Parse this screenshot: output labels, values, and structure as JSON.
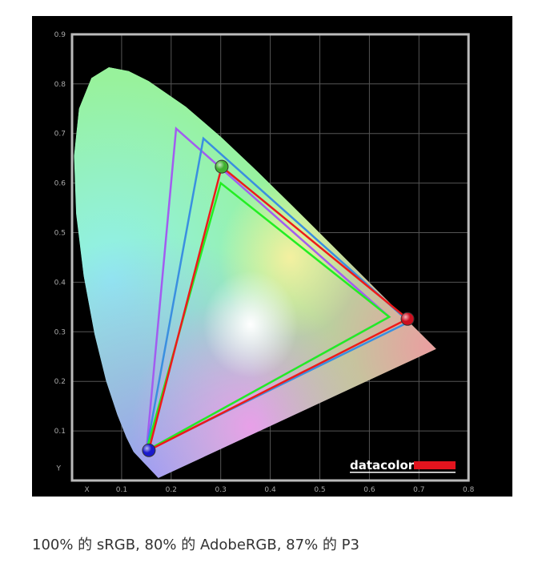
{
  "chart_data": {
    "type": "scatter",
    "title": "",
    "xlabel": "X",
    "ylabel": "Y",
    "xlim": [
      0,
      0.8
    ],
    "ylim": [
      0,
      0.9
    ],
    "xticks": [
      "0.1",
      "0.2",
      "0.3",
      "0.4",
      "0.5",
      "0.6",
      "0.7",
      "0.8"
    ],
    "yticks": [
      "0.1",
      "0.2",
      "0.3",
      "0.4",
      "0.5",
      "0.6",
      "0.7",
      "0.8",
      "0.9"
    ],
    "grid": true,
    "spectral_locus": [
      [
        0.1741,
        0.005
      ],
      [
        0.1241,
        0.0578
      ],
      [
        0.1096,
        0.0868
      ],
      [
        0.0913,
        0.1327
      ],
      [
        0.0687,
        0.2007
      ],
      [
        0.0454,
        0.295
      ],
      [
        0.0235,
        0.4127
      ],
      [
        0.0082,
        0.5384
      ],
      [
        0.0039,
        0.6548
      ],
      [
        0.0139,
        0.7502
      ],
      [
        0.0389,
        0.812
      ],
      [
        0.0743,
        0.8338
      ],
      [
        0.1142,
        0.8262
      ],
      [
        0.1547,
        0.8059
      ],
      [
        0.2296,
        0.7543
      ],
      [
        0.3016,
        0.6923
      ],
      [
        0.3731,
        0.6245
      ],
      [
        0.4441,
        0.5547
      ],
      [
        0.5125,
        0.4866
      ],
      [
        0.5752,
        0.4242
      ],
      [
        0.627,
        0.3725
      ],
      [
        0.6915,
        0.3083
      ],
      [
        0.7347,
        0.2653
      ]
    ],
    "series": [
      {
        "color": "#a25cf0",
        "points": [
          [
            0.64,
            0.33
          ],
          [
            0.21,
            0.71
          ],
          [
            0.15,
            0.06
          ]
        ]
      },
      {
        "color": "#3a8fe0",
        "points": [
          [
            0.68,
            0.32
          ],
          [
            0.265,
            0.69
          ],
          [
            0.15,
            0.06
          ]
        ]
      },
      {
        "color": "#22ee22",
        "points": [
          [
            0.64,
            0.33
          ],
          [
            0.3,
            0.6
          ],
          [
            0.15,
            0.06
          ]
        ]
      },
      {
        "color": "#ee1a1a",
        "points": [
          [
            0.677,
            0.326
          ],
          [
            0.302,
            0.633
          ],
          [
            0.155,
            0.061
          ]
        ]
      }
    ],
    "measured_primaries": [
      {
        "color": "#cc1020",
        "point": [
          0.677,
          0.326
        ]
      },
      {
        "color": "#40b030",
        "point": [
          0.302,
          0.633
        ]
      },
      {
        "color": "#1a1acc",
        "point": [
          0.155,
          0.061
        ]
      }
    ]
  },
  "logo": {
    "text": "datacolor",
    "accent": "#e3141e"
  },
  "caption": "100% 的 sRGB, 80% 的 AdobeRGB, 87% 的 P3"
}
